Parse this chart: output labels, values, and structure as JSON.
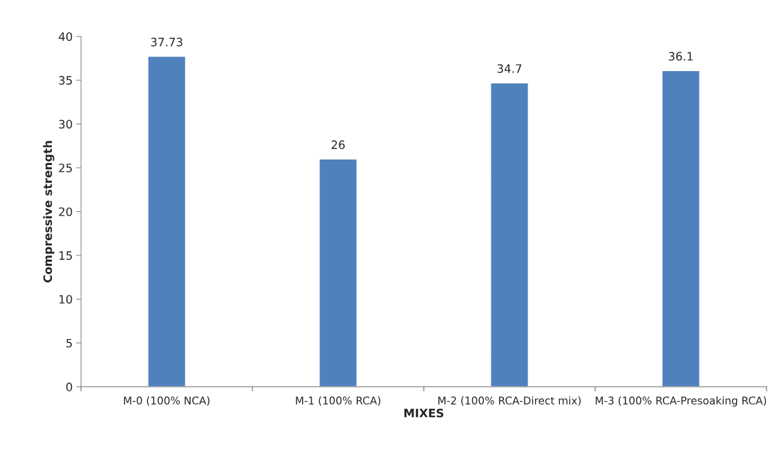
{
  "chart_data": {
    "type": "bar",
    "xlabel": "MIXES",
    "ylabel": "Compressive strength",
    "categories": [
      "M-0 (100% NCA)",
      "M-1 (100% RCA)",
      "M-2 (100% RCA-Direct mix)",
      "M-3 (100% RCA-Presoaking RCA)"
    ],
    "values": [
      37.73,
      26,
      34.7,
      36.1
    ],
    "color": "#4f81bd",
    "ylim": [
      0,
      40
    ],
    "yticks": [
      0,
      5,
      10,
      15,
      20,
      25,
      30,
      35,
      40
    ],
    "grid": false,
    "data_labels": true
  }
}
